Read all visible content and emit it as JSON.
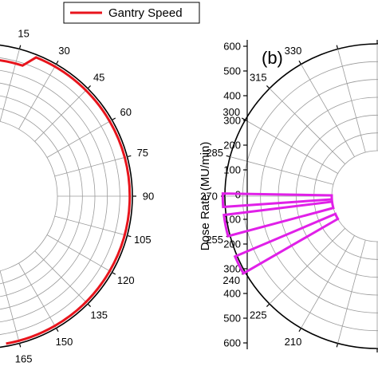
{
  "chart_data": [
    {
      "type": "polar-line",
      "angular_unit": "degrees",
      "angle_ticks": [
        "15",
        "30",
        "45",
        "60",
        "75",
        "90",
        "105",
        "120",
        "135",
        "150",
        "165"
      ],
      "legend": {
        "position": "top-center",
        "entries": [
          "Gantry Speed"
        ]
      },
      "series": [
        {
          "name": "Gantry Speed",
          "color": "#e8141c",
          "points": [
            {
              "theta": 355,
              "r": 0.8
            },
            {
              "theta": 18,
              "r": 0.8
            },
            {
              "theta": 22,
              "r": 0.965
            },
            {
              "theta": 60,
              "r": 0.965
            },
            {
              "theta": 90,
              "r": 0.965
            },
            {
              "theta": 120,
              "r": 0.965
            },
            {
              "theta": 150,
              "r": 0.965
            },
            {
              "theta": 170,
              "r": 0.965
            }
          ]
        }
      ],
      "grid": true
    },
    {
      "type": "polar-bar",
      "panel_label": "(b)",
      "angular_unit": "degrees",
      "angle_ticks": [
        "210",
        "225",
        "240",
        "255",
        "270",
        "285",
        "300",
        "315",
        "330"
      ],
      "radial_axis": {
        "label": "Dose Rate (MU/min)",
        "ticks": [
          "600",
          "500",
          "400",
          "300",
          "200",
          "100",
          "0",
          "100",
          "200",
          "300",
          "400",
          "500",
          "600"
        ],
        "range": [
          0,
          600
        ]
      },
      "series": [
        {
          "color": "#e020e8",
          "wedges": [
            {
              "theta_start": 266,
              "theta_end": 271,
              "value": 600
            },
            {
              "theta_start": 255,
              "theta_end": 263,
              "value": 600
            },
            {
              "theta_start": 240,
              "theta_end": 247,
              "value": 600
            }
          ]
        }
      ],
      "grid": true
    }
  ],
  "colors": {
    "gantry_speed": "#e8141c",
    "dose_rate": "#e020e8",
    "grid": "#9a9a9a",
    "axis": "#000000"
  }
}
